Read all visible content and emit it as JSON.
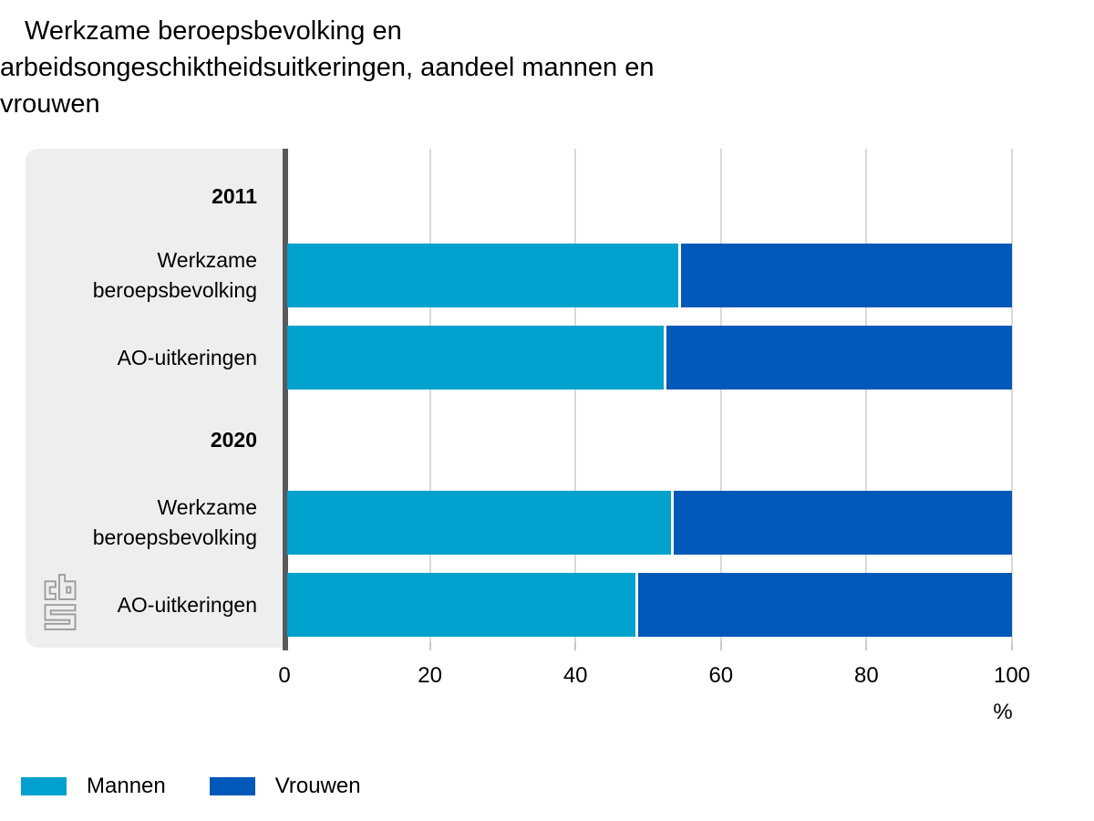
{
  "title": {
    "line1": "Werkzame beroepsbevolking en",
    "line2": "arbeidsongeschiktheidsuitkeringen, aandeel mannen en",
    "line3": "vrouwen"
  },
  "colors": {
    "series": {
      "Mannen": "#00a1cd",
      "Vrouwen": "#0058b8"
    },
    "panel": "#eeeeee",
    "axis_line": "#58595b",
    "gridline": "#d9d9d9",
    "tick": "#c9c9c9"
  },
  "axis": {
    "ticks": [
      0,
      20,
      40,
      60,
      80,
      100
    ],
    "unit": "%",
    "min": 0,
    "max": 100
  },
  "legend": [
    {
      "label": "Mannen",
      "color": "#00a1cd"
    },
    {
      "label": "Vrouwen",
      "color": "#0058b8"
    }
  ],
  "logo": "cbs-logo",
  "chart_data": {
    "type": "bar",
    "orientation": "horizontal",
    "stacked": true,
    "stacked_total": 100,
    "title": "Werkzame beroepsbevolking en arbeidsongeschiktheidsuitkeringen, aandeel mannen en vrouwen",
    "xlabel": "%",
    "xlim": [
      0,
      100
    ],
    "grid": true,
    "legend_entries": [
      "Mannen",
      "Vrouwen"
    ],
    "legend_position": "bottom",
    "groups": [
      {
        "label": "2011",
        "rows": [
          {
            "category": "Werkzame beroepsbevolking",
            "series": {
              "Mannen": 54,
              "Vrouwen": 46
            }
          },
          {
            "category": "AO-uitkeringen",
            "series": {
              "Mannen": 52,
              "Vrouwen": 48
            }
          }
        ]
      },
      {
        "label": "2020",
        "rows": [
          {
            "category": "Werkzame beroepsbevolking",
            "series": {
              "Mannen": 53,
              "Vrouwen": 47
            }
          },
          {
            "category": "AO-uitkeringen",
            "series": {
              "Mannen": 48,
              "Vrouwen": 52
            }
          }
        ]
      }
    ]
  }
}
